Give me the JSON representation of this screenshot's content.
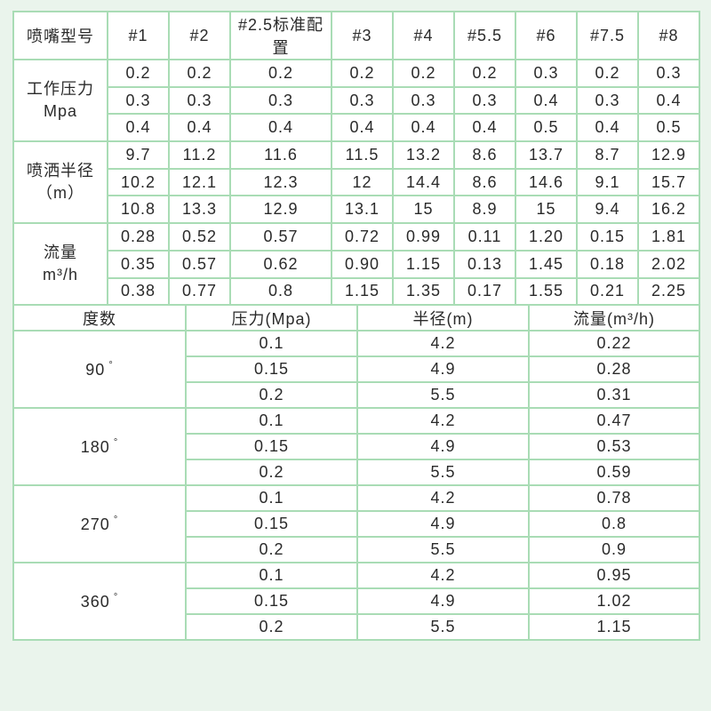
{
  "nozzle_table": {
    "header_label": "喷嘴型号",
    "models": [
      "#1",
      "#2",
      "#2.5标准配置",
      "#3",
      "#4",
      "#5.5",
      "#6",
      "#7.5",
      "#8"
    ],
    "groups": [
      {
        "label_line1": "工作压力",
        "label_line2": "Mpa",
        "rows": [
          [
            "0.2",
            "0.2",
            "0.2",
            "0.2",
            "0.2",
            "0.2",
            "0.3",
            "0.2",
            "0.3"
          ],
          [
            "0.3",
            "0.3",
            "0.3",
            "0.3",
            "0.3",
            "0.3",
            "0.4",
            "0.3",
            "0.4"
          ],
          [
            "0.4",
            "0.4",
            "0.4",
            "0.4",
            "0.4",
            "0.4",
            "0.5",
            "0.4",
            "0.5"
          ]
        ]
      },
      {
        "label_line1": "喷洒半径",
        "label_line2": "（m）",
        "rows": [
          [
            "9.7",
            "11.2",
            "11.6",
            "11.5",
            "13.2",
            "8.6",
            "13.7",
            "8.7",
            "12.9"
          ],
          [
            "10.2",
            "12.1",
            "12.3",
            "12",
            "14.4",
            "8.6",
            "14.6",
            "9.1",
            "15.7"
          ],
          [
            "10.8",
            "13.3",
            "12.9",
            "13.1",
            "15",
            "8.9",
            "15",
            "9.4",
            "16.2"
          ]
        ]
      },
      {
        "label_line1": "流量",
        "label_line2": "m³/h",
        "rows": [
          [
            "0.28",
            "0.52",
            "0.57",
            "0.72",
            "0.99",
            "0.11",
            "1.20",
            "0.15",
            "1.81"
          ],
          [
            "0.35",
            "0.57",
            "0.62",
            "0.90",
            "1.15",
            "0.13",
            "1.45",
            "0.18",
            "2.02"
          ],
          [
            "0.38",
            "0.77",
            "0.8",
            "1.15",
            "1.35",
            "0.17",
            "1.55",
            "0.21",
            "2.25"
          ]
        ]
      }
    ]
  },
  "angle_table": {
    "headers": [
      "度数",
      "压力(Mpa)",
      "半径(m)",
      "流量(m³/h)"
    ],
    "degree_symbol": "°",
    "groups": [
      {
        "angle": "90",
        "rows": [
          [
            "0.1",
            "4.2",
            "0.22"
          ],
          [
            "0.15",
            "4.9",
            "0.28"
          ],
          [
            "0.2",
            "5.5",
            "0.31"
          ]
        ]
      },
      {
        "angle": "180",
        "rows": [
          [
            "0.1",
            "4.2",
            "0.47"
          ],
          [
            "0.15",
            "4.9",
            "0.53"
          ],
          [
            "0.2",
            "5.5",
            "0.59"
          ]
        ]
      },
      {
        "angle": "270",
        "rows": [
          [
            "0.1",
            "4.2",
            "0.78"
          ],
          [
            "0.15",
            "4.9",
            "0.8"
          ],
          [
            "0.2",
            "5.5",
            "0.9"
          ]
        ]
      },
      {
        "angle": "360",
        "rows": [
          [
            "0.1",
            "4.2",
            "0.95"
          ],
          [
            "0.15",
            "4.9",
            "1.02"
          ],
          [
            "0.2",
            "5.5",
            "1.15"
          ]
        ]
      }
    ]
  },
  "colors": {
    "background": "#eaf4ec",
    "border": "#a9dcb5"
  }
}
